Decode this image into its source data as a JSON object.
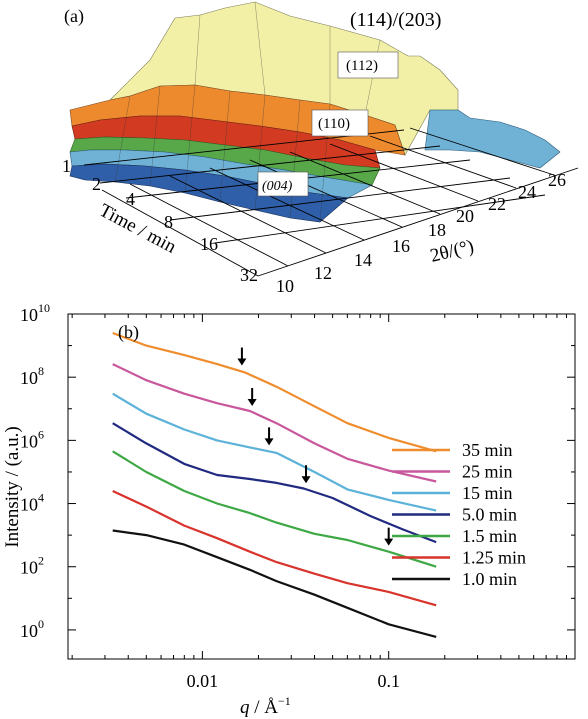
{
  "colors": {
    "surface_blue": "#2f5fa8",
    "surface_lightblue": "#6fb2d6",
    "surface_green": "#58a84a",
    "surface_red": "#d23b22",
    "surface_orange": "#ee8a2e",
    "surface_yellow": "#f2f0a6"
  },
  "chart_data": [
    {
      "type": "surface",
      "panel_label": "(a)",
      "xlabel": "2θ/(°)",
      "ylabel": "Time / min",
      "x_ticks": [
        "10",
        "12",
        "14",
        "16",
        "18",
        "20",
        "22",
        "24",
        "26"
      ],
      "y_ticks": [
        "32",
        "16",
        "8",
        "4",
        "2",
        "1"
      ],
      "peak_labels": [
        "(114)/(203)",
        "(112)",
        "(110)",
        "(004)"
      ]
    },
    {
      "type": "line",
      "panel_label": "(b)",
      "xlabel_symbol": "q",
      "xlabel_unit": " / Å",
      "xlabel_exp": "−1",
      "ylabel": "Intensity / (a.u.)",
      "x_scale": "log",
      "y_scale": "log",
      "x_ticks": [
        {
          "value": 0.01,
          "label": "0.01"
        },
        {
          "value": 0.1,
          "label": "0.1"
        }
      ],
      "y_ticks": [
        {
          "value": 10000000000.0,
          "base": "10",
          "exp": "10"
        },
        {
          "value": 100000000.0,
          "base": "10",
          "exp": "8"
        },
        {
          "value": 1000000.0,
          "base": "10",
          "exp": "6"
        },
        {
          "value": 10000.0,
          "base": "10",
          "exp": "4"
        },
        {
          "value": 100.0,
          "base": "10",
          "exp": "2"
        },
        {
          "value": 1,
          "base": "10",
          "exp": "0"
        }
      ],
      "xlim": [
        0.0019,
        1.0
      ],
      "ylim": [
        0.12,
        10000000000.0
      ],
      "legend_position": "right",
      "series": [
        {
          "name": "35 min",
          "color": "#ef8d2e",
          "x": [
            0.0033,
            0.005,
            0.008,
            0.012,
            0.017,
            0.025,
            0.04,
            0.06,
            0.1,
            0.18
          ],
          "y": [
            2500000000.0,
            1000000000.0,
            500000000.0,
            260000000.0,
            140000000.0,
            50000000.0,
            12000000.0,
            3500000.0,
            1200000.0,
            450000.0
          ],
          "arrow_x": 0.0163
        },
        {
          "name": "25 min",
          "color": "#c8579c",
          "x": [
            0.0033,
            0.005,
            0.008,
            0.012,
            0.018,
            0.025,
            0.04,
            0.06,
            0.1,
            0.18
          ],
          "y": [
            260000000.0,
            80000000.0,
            30000000.0,
            15000000.0,
            8500000.0,
            3500000.0,
            800000.0,
            260000.0,
            110000.0,
            50000.0
          ],
          "arrow_x": 0.0185
        },
        {
          "name": "15 min",
          "color": "#5cb2d8",
          "x": [
            0.0033,
            0.005,
            0.008,
            0.012,
            0.018,
            0.025,
            0.04,
            0.06,
            0.1,
            0.18
          ],
          "y": [
            30000000.0,
            7000000.0,
            2200000.0,
            1000000.0,
            600000.0,
            400000.0,
            100000.0,
            28000.0,
            13000.0,
            6000.0
          ],
          "arrow_x": 0.0228
        },
        {
          "name": "5.0 min",
          "color": "#202a80",
          "x": [
            0.0033,
            0.005,
            0.008,
            0.012,
            0.018,
            0.025,
            0.035,
            0.05,
            0.08,
            0.12,
            0.18
          ],
          "y": [
            3500000.0,
            800000.0,
            180000.0,
            80000.0,
            60000.0,
            45000.0,
            30000.0,
            15000.0,
            4000.0,
            1500.0,
            600.0
          ],
          "arrow_x": 0.036
        },
        {
          "name": "1.5 min",
          "color": "#3ea845",
          "x": [
            0.0033,
            0.005,
            0.008,
            0.012,
            0.018,
            0.025,
            0.04,
            0.06,
            0.1,
            0.18
          ],
          "y": [
            450000.0,
            100000.0,
            25000.0,
            10000.0,
            5000.0,
            2500.0,
            1100.0,
            700.0,
            300.0,
            100.0
          ],
          "arrow_x": 0.1
        },
        {
          "name": "1.25 min",
          "color": "#d8342c",
          "x": [
            0.0033,
            0.005,
            0.008,
            0.012,
            0.018,
            0.025,
            0.04,
            0.06,
            0.1,
            0.18
          ],
          "y": [
            25000.0,
            8000.0,
            2000.0,
            800.0,
            300.0,
            140.0,
            60.0,
            30.0,
            16.0,
            6.0
          ],
          "arrow_x": null
        },
        {
          "name": "1.0 min",
          "color": "#111111",
          "x": [
            0.0033,
            0.005,
            0.008,
            0.012,
            0.018,
            0.025,
            0.04,
            0.06,
            0.1,
            0.18
          ],
          "y": [
            1400.0,
            1000.0,
            500.0,
            200.0,
            80.0,
            35.0,
            13.0,
            5.0,
            1.5,
            0.6
          ],
          "arrow_x": null
        }
      ]
    }
  ]
}
